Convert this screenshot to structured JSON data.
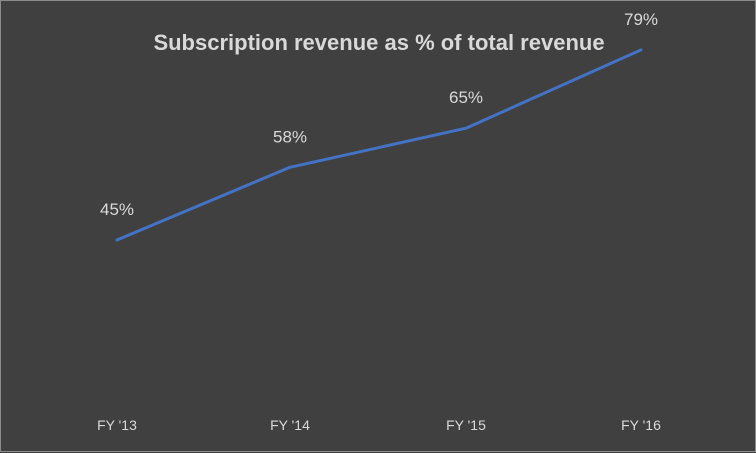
{
  "chart_data": {
    "type": "line",
    "title": "Subscription revenue as % of total revenue",
    "categories": [
      "FY '13",
      "FY '14",
      "FY '15",
      "FY '16"
    ],
    "values": [
      45,
      58,
      65,
      79
    ],
    "data_labels": [
      "45%",
      "58%",
      "65%",
      "79%"
    ],
    "xlabel": "",
    "ylabel": "",
    "ylim": [
      0,
      100
    ],
    "grid": false,
    "legend": "none",
    "colors": {
      "background": "#404040",
      "line": "#4472c4",
      "text": "#d9d9d9",
      "border": "#8c8c8c"
    }
  }
}
